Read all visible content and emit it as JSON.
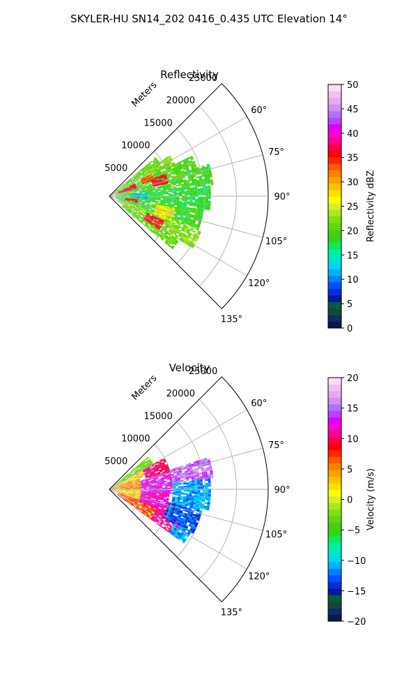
{
  "figure": {
    "suptitle": "SKYLER-HU  SN14_202  0416_0.435 UTC Elevation 14°"
  },
  "chart_data": [
    {
      "type": "heatmap",
      "projection": "polar-sector",
      "title": "Reflectivity",
      "radial_label": "Meters",
      "r_ticks": [
        5000,
        10000,
        15000,
        20000,
        25000
      ],
      "r_max": 25000,
      "theta_ticks": [
        "60°",
        "75°",
        "90°",
        "105°",
        "120°",
        "135°"
      ],
      "theta_tick_values": [
        60,
        75,
        90,
        105,
        120,
        135
      ],
      "theta_range": [
        45,
        135
      ],
      "grid": true,
      "colorbar": {
        "label": "Reflectivity dBZ",
        "min": 0,
        "max": 50,
        "ticks": [
          "0",
          "5",
          "10",
          "15",
          "20",
          "25",
          "30",
          "35",
          "40",
          "45",
          "50"
        ],
        "tick_values": [
          0,
          5,
          10,
          15,
          20,
          25,
          30,
          35,
          40,
          45,
          50
        ],
        "colors": [
          "#0a1650",
          "#0b2c60",
          "#0e4b3c",
          "#0a5a3a",
          "#0616a0",
          "#0630d6",
          "#0050ff",
          "#0080ff",
          "#00b0ff",
          "#00d8f0",
          "#00e6c8",
          "#00f0a0",
          "#10e860",
          "#30d810",
          "#48d010",
          "#60d810",
          "#80e010",
          "#a8e820",
          "#d8f020",
          "#ffff00",
          "#ffe000",
          "#ffc000",
          "#ffa000",
          "#ff8000",
          "#ff5a00",
          "#ff2800",
          "#ff0000",
          "#ff0048",
          "#ff0090",
          "#ff00d8",
          "#e000ff",
          "#c040ff",
          "#b070ff",
          "#d090f0",
          "#e8a8f0",
          "#f0c0f0",
          "#f8dff8"
        ]
      },
      "echo_regions": [
        {
          "theta": [
            50,
            56
          ],
          "r": [
            500,
            9500
          ],
          "dbz": 20
        },
        {
          "theta": [
            56,
            64
          ],
          "r": [
            700,
            11500
          ],
          "dbz": 22
        },
        {
          "theta": [
            64,
            72
          ],
          "r": [
            900,
            14500
          ],
          "dbz": 20
        },
        {
          "theta": [
            72,
            84
          ],
          "r": [
            1000,
            16500
          ],
          "dbz": 19
        },
        {
          "theta": [
            84,
            98
          ],
          "r": [
            1000,
            16000
          ],
          "dbz": 18
        },
        {
          "theta": [
            98,
            110
          ],
          "r": [
            1000,
            15000
          ],
          "dbz": 19
        },
        {
          "theta": [
            110,
            122
          ],
          "r": [
            1500,
            15500
          ],
          "dbz": 22
        },
        {
          "theta": [
            122,
            130
          ],
          "r": [
            2500,
            13000
          ],
          "dbz": 21
        },
        {
          "theta": [
            64,
            76
          ],
          "r": [
            1500,
            4500
          ],
          "dbz": 37
        },
        {
          "theta": [
            62,
            70
          ],
          "r": [
            5500,
            7500
          ],
          "dbz": 33
        },
        {
          "theta": [
            68,
            78
          ],
          "r": [
            7000,
            9500
          ],
          "dbz": 36
        },
        {
          "theta": [
            96,
            104
          ],
          "r": [
            2500,
            4500
          ],
          "dbz": 35
        },
        {
          "theta": [
            114,
            124
          ],
          "r": [
            6500,
            9500
          ],
          "dbz": 36
        },
        {
          "theta": [
            84,
            94
          ],
          "r": [
            3500,
            6000
          ],
          "dbz": 12
        },
        {
          "theta": [
            100,
            112
          ],
          "r": [
            7500,
            10500
          ],
          "dbz": 27
        }
      ]
    },
    {
      "type": "heatmap",
      "projection": "polar-sector",
      "title": "Velocity",
      "radial_label": "Meters",
      "r_ticks": [
        5000,
        10000,
        15000,
        20000,
        25000
      ],
      "r_max": 25000,
      "theta_ticks": [
        "60°",
        "75°",
        "90°",
        "105°",
        "120°",
        "135°"
      ],
      "theta_tick_values": [
        60,
        75,
        90,
        105,
        120,
        135
      ],
      "theta_range": [
        45,
        135
      ],
      "grid": true,
      "colorbar": {
        "label": "Velocity (m/s)",
        "min": -20,
        "max": 20,
        "ticks": [
          "−20",
          "−15",
          "−10",
          "−5",
          "0",
          "5",
          "10",
          "15",
          "20"
        ],
        "tick_values": [
          -20,
          -15,
          -10,
          -5,
          0,
          5,
          10,
          15,
          20
        ],
        "colors": [
          "#0a1650",
          "#0b2c60",
          "#0e4b3c",
          "#0a5a3a",
          "#0616a0",
          "#0630d6",
          "#0050ff",
          "#0080ff",
          "#00b0ff",
          "#00d8f0",
          "#00e6c8",
          "#00f0a0",
          "#10e860",
          "#30d810",
          "#48d010",
          "#60d810",
          "#80e010",
          "#a8e820",
          "#d8f020",
          "#ffff00",
          "#ffe000",
          "#ffc000",
          "#ffa000",
          "#ff8000",
          "#ff5a00",
          "#ff2800",
          "#ff0000",
          "#ff0048",
          "#ff0090",
          "#ff00d8",
          "#e000ff",
          "#c040ff",
          "#b070ff",
          "#d090f0",
          "#e8a8f0",
          "#f0c0f0",
          "#f8dff8"
        ]
      },
      "echo_regions": [
        {
          "theta": [
            50,
            60
          ],
          "r": [
            500,
            8000
          ],
          "ms": -3
        },
        {
          "theta": [
            60,
            70
          ],
          "r": [
            500,
            6000
          ],
          "ms": 3
        },
        {
          "theta": [
            70,
            90
          ],
          "r": [
            500,
            5000
          ],
          "ms": 5
        },
        {
          "theta": [
            90,
            110
          ],
          "r": [
            500,
            5000
          ],
          "ms": 3
        },
        {
          "theta": [
            110,
            126
          ],
          "r": [
            1500,
            8000
          ],
          "ms": 7
        },
        {
          "theta": [
            60,
            74
          ],
          "r": [
            6000,
            10000
          ],
          "ms": 10
        },
        {
          "theta": [
            74,
            94
          ],
          "r": [
            5000,
            10000
          ],
          "ms": 13
        },
        {
          "theta": [
            94,
            112
          ],
          "r": [
            5000,
            9500
          ],
          "ms": 12
        },
        {
          "theta": [
            112,
            126
          ],
          "r": [
            8000,
            12500
          ],
          "ms": 11
        },
        {
          "theta": [
            72,
            84
          ],
          "r": [
            10000,
            16500
          ],
          "ms": 15
        },
        {
          "theta": [
            84,
            102
          ],
          "r": [
            10000,
            16000
          ],
          "ms": -11
        },
        {
          "theta": [
            102,
            118
          ],
          "r": [
            9500,
            15000
          ],
          "ms": -13
        },
        {
          "theta": [
            118,
            126
          ],
          "r": [
            11500,
            14500
          ],
          "ms": -11
        }
      ]
    }
  ]
}
